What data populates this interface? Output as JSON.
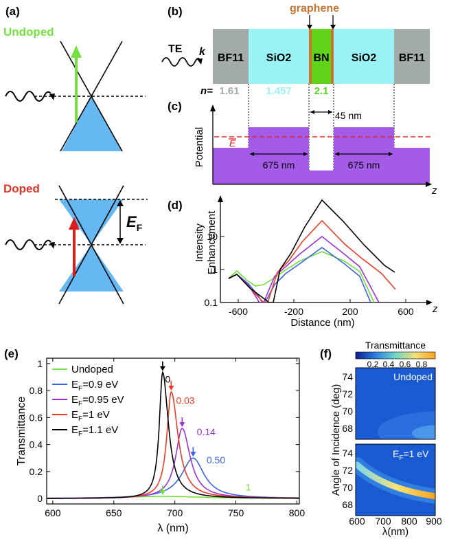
{
  "panel_labels": {
    "a": "(a)",
    "b": "(b)",
    "c": "(c)",
    "d": "(d)",
    "e": "(e)",
    "f": "(f)"
  },
  "panel_a": {
    "undoped": "Undoped",
    "doped": "Doped",
    "ef_symbol": "E",
    "ef_sub": "F"
  },
  "panel_b": {
    "graphene": "graphene",
    "te": "TE",
    "k": "k",
    "layers": [
      "BF11",
      "SiO2",
      "BN",
      "SiO2",
      "BF11"
    ],
    "n_label": "n=",
    "n_values": [
      "1.61",
      "1.457",
      "2.1"
    ],
    "colors": {
      "bf11": "#a3aba8",
      "sio2": "#99f3f5",
      "bn": "#5ed31a",
      "graphene": "#c8742d"
    }
  },
  "panel_c": {
    "ylabel": "Potential",
    "e_bar": "E",
    "gap_label": "45 nm",
    "width_left": "675 nm",
    "width_right": "675 nm",
    "axis_z": "z",
    "fill": "#a35be8"
  },
  "panel_d": {
    "ylabel_line1": "Intensity",
    "ylabel_line2": "Enhancement",
    "xlabel": "Distance (nm)",
    "axis_z": "z",
    "yticks": [
      "0.1",
      "1",
      "10"
    ],
    "xticks": [
      "-600",
      "-200",
      "200",
      "600"
    ]
  },
  "panel_f": {
    "colorbar_title": "Transmittance",
    "colorbar_ticks": [
      "0.2",
      "0.4",
      "0.6",
      "0.8"
    ],
    "top_label": "Undoped",
    "bottom_label": "E",
    "bottom_label_sub": "F",
    "bottom_label_rest": "=1 eV",
    "ylabel": "Angle of Incidence (deg)",
    "xlabel": "λ(nm)",
    "yticks": [
      "74",
      "72",
      "70",
      "68"
    ],
    "xticks": [
      "600",
      "700",
      "800",
      "900"
    ]
  },
  "chart_data": {
    "type": "line",
    "title": "",
    "xlabel": "λ (nm)",
    "ylabel": "Transmittance",
    "xlim": [
      595,
      802
    ],
    "ylim": [
      -0.04,
      1.04
    ],
    "xticks": [
      600,
      650,
      700,
      750,
      800
    ],
    "yticks": [
      0,
      0.2,
      0.4,
      0.6,
      0.8,
      1
    ],
    "legend_position": "top-left",
    "series": [
      {
        "name": "Undoped",
        "label_parts": [
          "Undoped",
          "",
          ""
        ],
        "color": "#6fe03a",
        "peak_x": 690,
        "peak_y": 0.016,
        "gamma_l": 40,
        "gamma_r": 40,
        "annotation": "1",
        "ann_x": 758,
        "ann_y": 0.06
      },
      {
        "name": "EF=0.9 eV",
        "label_parts": [
          "E",
          "F",
          "=0.9 eV"
        ],
        "color": "#3b63e6",
        "peak_x": 715,
        "peak_y": 0.3,
        "gamma_l": 11.5,
        "gamma_r": 11,
        "annotation": "0.50",
        "ann_x": 726,
        "ann_y": 0.26
      },
      {
        "name": "EF=0.95 eV",
        "label_parts": [
          "E",
          "F",
          "=0.95 eV"
        ],
        "color": "#9b30d4",
        "peak_x": 706,
        "peak_y": 0.52,
        "gamma_l": 6.5,
        "gamma_r": 8,
        "annotation": "0.14",
        "ann_x": 718,
        "ann_y": 0.47
      },
      {
        "name": "EF=1 eV",
        "label_parts": [
          "E",
          "F",
          "=1 eV"
        ],
        "color": "#ee3a24",
        "peak_x": 697,
        "peak_y": 0.79,
        "gamma_l": 4.3,
        "gamma_r": 6.8,
        "annotation": "0.03",
        "ann_x": 701,
        "ann_y": 0.7
      },
      {
        "name": "EF=1.1 eV",
        "label_parts": [
          "E",
          "F",
          "=1.1 eV"
        ],
        "color": "#000000",
        "peak_x": 690,
        "peak_y": 0.935,
        "gamma_l": 3.3,
        "gamma_r": 5.7,
        "annotation": "0",
        "ann_x": 692,
        "ann_y": 0.86
      }
    ]
  }
}
